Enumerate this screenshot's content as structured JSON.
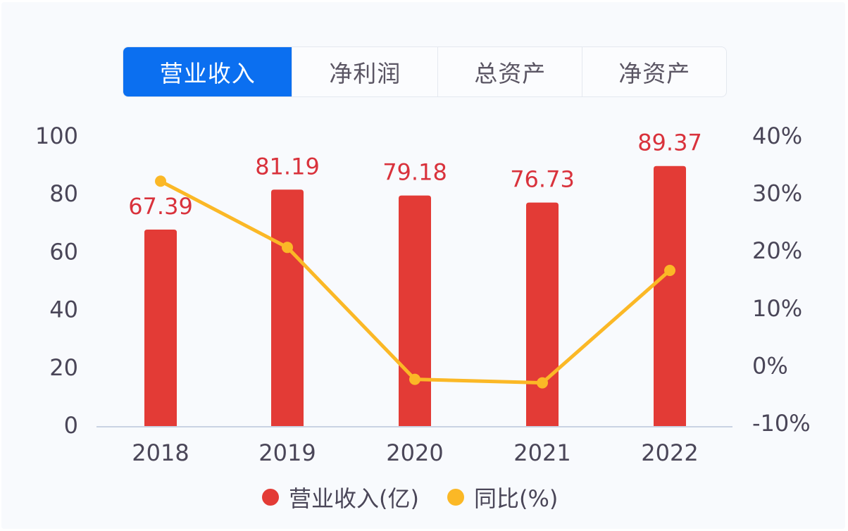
{
  "tabs": [
    {
      "label": "营业收入",
      "active": true
    },
    {
      "label": "净利润",
      "active": false
    },
    {
      "label": "总资产",
      "active": false
    },
    {
      "label": "净资产",
      "active": false
    }
  ],
  "colors": {
    "bar": "#e33b36",
    "line": "#fbb826",
    "active_tab": "#0b6ff0",
    "value_label": "#d9323c",
    "axis_text": "#4a4658",
    "baseline": "#c9d3e3"
  },
  "legend": [
    {
      "label": "营业收入(亿)",
      "color": "#e33b36"
    },
    {
      "label": "同比(%)",
      "color": "#fbb826"
    }
  ],
  "chart_data": {
    "type": "bar",
    "title": "营业收入",
    "categories": [
      "2018",
      "2019",
      "2020",
      "2021",
      "2022"
    ],
    "series": [
      {
        "name": "营业收入(亿)",
        "type": "bar",
        "axis": "left",
        "values": [
          67.39,
          81.19,
          79.18,
          76.73,
          89.37
        ]
      },
      {
        "name": "同比(%)",
        "type": "line",
        "axis": "right",
        "values": [
          32.0,
          20.48,
          -2.48,
          -3.09,
          16.47
        ]
      }
    ],
    "data_labels": [
      "67.39",
      "81.19",
      "79.18",
      "76.73",
      "89.37"
    ],
    "left_axis": {
      "min": 0,
      "max": 100,
      "ticks": [
        "0",
        "20",
        "40",
        "60",
        "80",
        "100"
      ]
    },
    "right_axis": {
      "min": -10,
      "max": 40,
      "ticks": [
        "-10%",
        "0%",
        "10%",
        "20%",
        "30%",
        "40%"
      ]
    },
    "xlabel": "",
    "ylabel": "",
    "grid": false,
    "legend_position": "bottom"
  }
}
